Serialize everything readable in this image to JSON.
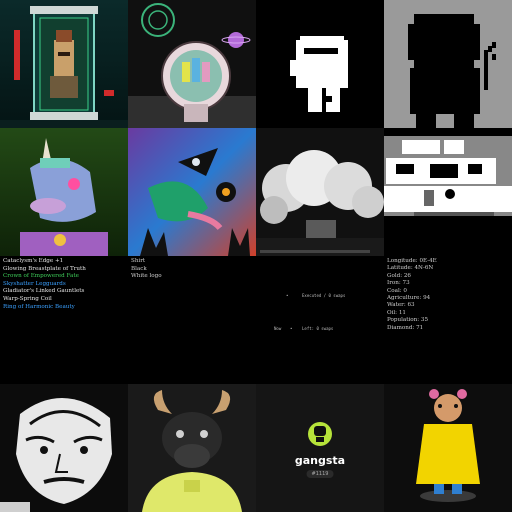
{
  "tiles": {
    "loot": {
      "items": [
        {
          "text": "Cataclysm's Edge +1",
          "color": "#e6e6e6"
        },
        {
          "text": "Glowing Breastplate of Truth",
          "color": "#e6e6e6"
        },
        {
          "text": "Crown of Empowered Fate",
          "color": "#3ecf5a"
        },
        {
          "text": "Skyshatter Legguards",
          "color": "#3aa0ff"
        },
        {
          "text": "Gladiator's Linked Gauntlets",
          "color": "#e6e6e6"
        },
        {
          "text": "Warp-Spring Coil",
          "color": "#e6e6e6"
        },
        {
          "text": "Ring of Harmonic Beauty",
          "color": "#3aa0ff"
        }
      ]
    },
    "attributes": {
      "lines": [
        "Shirt",
        "Black",
        "White logo"
      ]
    },
    "console": {
      "line1": "Executed / 0 swaps",
      "line2_left": "Now",
      "line2_right": "Left: 0 swaps"
    },
    "resources": {
      "lines": [
        "Longitude: 0E-4E",
        "Latitude: 4N-6N",
        "Gold: 26",
        "Iron: 73",
        "Coal: 0",
        "Agriculture: 94",
        "Water: 63",
        "Oil: 11",
        "Population: 35",
        "Diamond: 71"
      ]
    },
    "gangsta": {
      "name": "gangsta",
      "badge": "#1119",
      "accent": "#b6e33a"
    }
  }
}
